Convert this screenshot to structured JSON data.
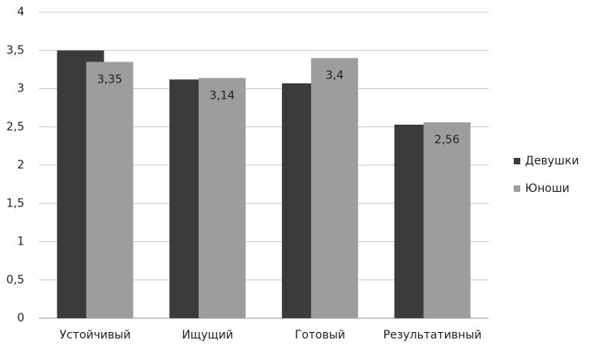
{
  "chart_data": {
    "type": "bar",
    "categories": [
      "Устойчивый",
      "Ищущий",
      "Готовый",
      "Результативный"
    ],
    "series": [
      {
        "name": "Девушки",
        "color": "#3b3b3b",
        "values": [
          3.5,
          3.12,
          3.07,
          2.53
        ]
      },
      {
        "name": "Юноши",
        "color": "#9d9d9d",
        "values": [
          3.35,
          3.14,
          3.4,
          2.56
        ],
        "value_labels": [
          "3,35",
          "3,14",
          "3,4",
          "2,56"
        ]
      }
    ],
    "ylim": [
      0,
      4
    ],
    "yticks": [
      0,
      {
        "value": 0.5,
        "label": "0,5"
      },
      1,
      {
        "value": 1.5,
        "label": "1,5"
      },
      2,
      {
        "value": 2.5,
        "label": "2,5"
      },
      3,
      {
        "value": 3.5,
        "label": "3,5"
      },
      4
    ],
    "grid": true,
    "legend": "right"
  }
}
